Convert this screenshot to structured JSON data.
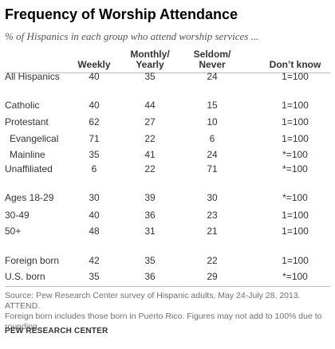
{
  "title": "Frequency of Worship Attendance",
  "subtitle": "% of Hispanics in each group who attend worship services ...",
  "columns": {
    "weekly": "Weekly",
    "monthly_l1": "Monthly/",
    "monthly_l2": "Yearly",
    "seldom_l1": "Seldom/",
    "seldom_l2": "Never",
    "dont_know": "Don’t know"
  },
  "rows": [
    {
      "label": "All Hispanics",
      "weekly": "40",
      "monthly": "35",
      "seldom": "24",
      "dk": "1=100"
    },
    {
      "label": "Catholic",
      "weekly": "40",
      "monthly": "44",
      "seldom": "15",
      "dk": "1=100"
    },
    {
      "label": "Protestant",
      "weekly": "62",
      "monthly": "27",
      "seldom": "10",
      "dk": "1=100"
    },
    {
      "label": "Evangelical",
      "weekly": "71",
      "monthly": "22",
      "seldom": "6",
      "dk": "1=100"
    },
    {
      "label": "Mainline",
      "weekly": "35",
      "monthly": "41",
      "seldom": "24",
      "dk": "*=100"
    },
    {
      "label": "Unaffiliated",
      "weekly": "6",
      "monthly": "22",
      "seldom": "71",
      "dk": "*=100"
    },
    {
      "label": "Ages 18-29",
      "weekly": "30",
      "monthly": "39",
      "seldom": "30",
      "dk": "*=100"
    },
    {
      "label": "30-49",
      "weekly": "40",
      "monthly": "36",
      "seldom": "23",
      "dk": "1=100"
    },
    {
      "label": "50+",
      "weekly": "48",
      "monthly": "31",
      "seldom": "21",
      "dk": "1=100"
    },
    {
      "label": "Foreign born",
      "weekly": "42",
      "monthly": "35",
      "seldom": "22",
      "dk": "1=100"
    },
    {
      "label": "U.S. born",
      "weekly": "35",
      "monthly": "36",
      "seldom": "29",
      "dk": "*=100"
    }
  ],
  "source": {
    "line1": "Source: Pew Research Center survey of Hispanic adults, May 24-July 28, 2013. ATTEND.",
    "line2": "Foreign born includes those born in Puerto Rico. Figures may not add to 100% due to",
    "line3": "rounding."
  },
  "footer": "PEW RESEARCH CENTER"
}
